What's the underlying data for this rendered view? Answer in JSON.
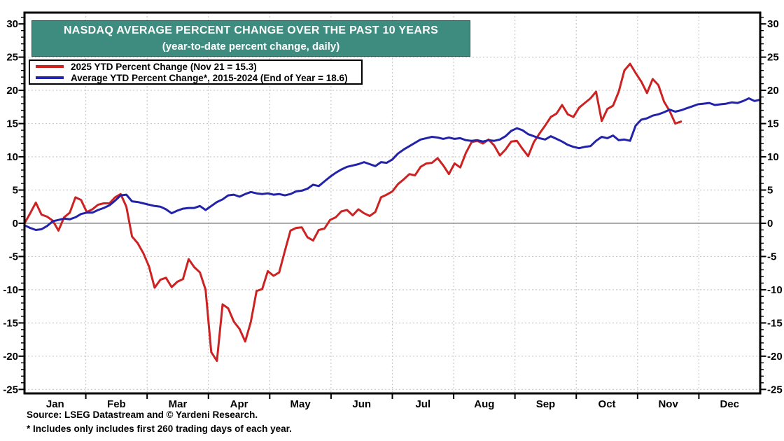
{
  "header": {
    "title": "NASDAQ AVERAGE PERCENT CHANGE OVER THE PAST 10 YEARS",
    "subtitle": "(year-to-date percent change, daily)"
  },
  "legend": {
    "items": [
      {
        "label": "2025 YTD Percent Change (Nov 21 = 15.3)",
        "color": "#cc2222"
      },
      {
        "label": "Average YTD Percent Change*, 2015-2024 (End of Year = 18.6)",
        "color": "#2222aa"
      }
    ]
  },
  "footer": {
    "source": "Source: LSEG Datastream and © Yardeni Research.",
    "note": "* Includes only includes first 260 trading days of each year."
  },
  "chart_data": {
    "type": "line",
    "title": "NASDAQ AVERAGE PERCENT CHANGE OVER THE PAST 10 YEARS",
    "subtitle": "(year-to-date percent change, daily)",
    "xlabel": "",
    "ylabel": "year-to-date percent change",
    "x_total_days": 260,
    "months": [
      "Jan",
      "Feb",
      "Mar",
      "Apr",
      "May",
      "Jun",
      "Jul",
      "Aug",
      "Sep",
      "Oct",
      "Nov",
      "Dec"
    ],
    "y_ticks": [
      30,
      25,
      20,
      15,
      10,
      5,
      0,
      -5,
      -10,
      -15,
      -20,
      -25
    ],
    "ylim": [
      -25.6,
      31.7
    ],
    "grid": "dotted horizontal every 5 units, dotted vertical at month boundaries, solid zero line",
    "legend_position": "top-left",
    "colors": {
      "grid": "#c9c9c9",
      "zero_line": "#808080",
      "frame": "#000000",
      "title_bg": "#3e8b80"
    },
    "series": [
      {
        "name": "2025 YTD Percent Change (Nov 21 = 15.3)",
        "color": "#cc2222",
        "end_label": "Nov 21 = 15.3",
        "day_start": 0,
        "day_step": 2,
        "values": [
          0.0,
          1.5,
          3.1,
          1.3,
          1.0,
          0.4,
          -1.1,
          0.9,
          1.6,
          3.9,
          3.5,
          1.7,
          2.1,
          2.8,
          3.0,
          3.0,
          3.9,
          4.4,
          2.5,
          -2.0,
          -3.0,
          -4.5,
          -6.5,
          -9.7,
          -8.5,
          -8.2,
          -9.6,
          -8.8,
          -8.4,
          -5.4,
          -6.6,
          -7.4,
          -10.0,
          -19.4,
          -20.7,
          -12.2,
          -12.8,
          -14.8,
          -15.9,
          -17.8,
          -14.8,
          -10.2,
          -9.9,
          -7.2,
          -7.9,
          -7.4,
          -4.2,
          -1.1,
          -0.7,
          -0.6,
          -2.1,
          -2.6,
          -1.0,
          -0.8,
          0.5,
          0.9,
          1.8,
          2.0,
          1.2,
          2.1,
          1.5,
          1.1,
          1.7,
          3.9,
          4.3,
          4.8,
          5.9,
          6.6,
          7.4,
          7.2,
          8.5,
          9.0,
          9.1,
          9.8,
          8.7,
          7.4,
          9.0,
          8.4,
          10.6,
          12.2,
          12.4,
          12.0,
          12.6,
          11.7,
          10.2,
          11.1,
          12.3,
          12.4,
          11.2,
          10.1,
          12.2,
          13.5,
          14.7,
          16.0,
          16.5,
          17.8,
          16.4,
          16.0,
          17.4,
          18.1,
          18.8,
          19.8,
          15.4,
          17.2,
          17.7,
          19.8,
          23.0,
          24.0,
          22.6,
          21.3,
          19.6,
          21.7,
          20.8,
          18.3,
          16.9,
          15.0,
          15.3
        ]
      },
      {
        "name": "Average YTD Percent Change*, 2015-2024 (End of Year = 18.6)",
        "color": "#2222aa",
        "end_label": "End of Year = 18.6",
        "day_start": 0,
        "day_step": 2,
        "values": [
          -0.3,
          -0.7,
          -1.0,
          -0.9,
          -0.4,
          0.3,
          0.5,
          0.7,
          0.6,
          0.9,
          1.4,
          1.6,
          1.6,
          2.0,
          2.3,
          2.7,
          3.4,
          4.2,
          4.3,
          3.3,
          3.2,
          3.0,
          2.8,
          2.6,
          2.5,
          2.1,
          1.5,
          1.9,
          2.2,
          2.3,
          2.3,
          2.6,
          2.0,
          2.6,
          3.2,
          3.6,
          4.2,
          4.3,
          4.0,
          4.4,
          4.7,
          4.5,
          4.4,
          4.5,
          4.3,
          4.4,
          4.2,
          4.4,
          4.8,
          4.9,
          5.2,
          5.8,
          5.6,
          6.3,
          7.0,
          7.6,
          8.1,
          8.5,
          8.7,
          8.9,
          9.2,
          8.9,
          8.6,
          9.2,
          9.1,
          9.6,
          10.5,
          11.1,
          11.6,
          12.1,
          12.6,
          12.8,
          13.0,
          12.9,
          12.7,
          12.9,
          12.7,
          12.8,
          12.5,
          12.4,
          12.5,
          12.3,
          12.5,
          12.4,
          12.6,
          13.1,
          13.9,
          14.3,
          14.0,
          13.4,
          13.1,
          12.8,
          12.6,
          13.1,
          12.7,
          12.3,
          11.8,
          11.5,
          11.3,
          11.5,
          11.6,
          12.4,
          13.0,
          12.8,
          13.2,
          12.5,
          12.6,
          12.4,
          14.7,
          15.6,
          15.8,
          16.2,
          16.4,
          16.7,
          17.1,
          16.8,
          17.0,
          17.3,
          17.6,
          17.9,
          18.0,
          18.1,
          17.8,
          17.9,
          18.0,
          18.2,
          18.1,
          18.4,
          18.8,
          18.4,
          18.6
        ]
      }
    ]
  }
}
